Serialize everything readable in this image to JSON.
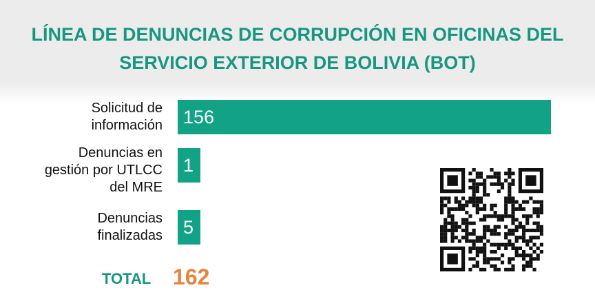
{
  "chart_data": {
    "type": "bar",
    "orientation": "horizontal",
    "title": "LÍNEA DE DENUNCIAS DE CORRUPCIÓN EN OFICINAS DEL SERVICIO EXTERIOR DE BOLIVIA (BOT)",
    "categories": [
      "Solicitud de información",
      "Denuncias en gestión por UTLCC del MRE",
      "Denuncias finalizadas"
    ],
    "values": [
      156,
      1,
      5
    ],
    "color": "#12a386",
    "total_label": "TOTAL",
    "total": 162
  }
}
